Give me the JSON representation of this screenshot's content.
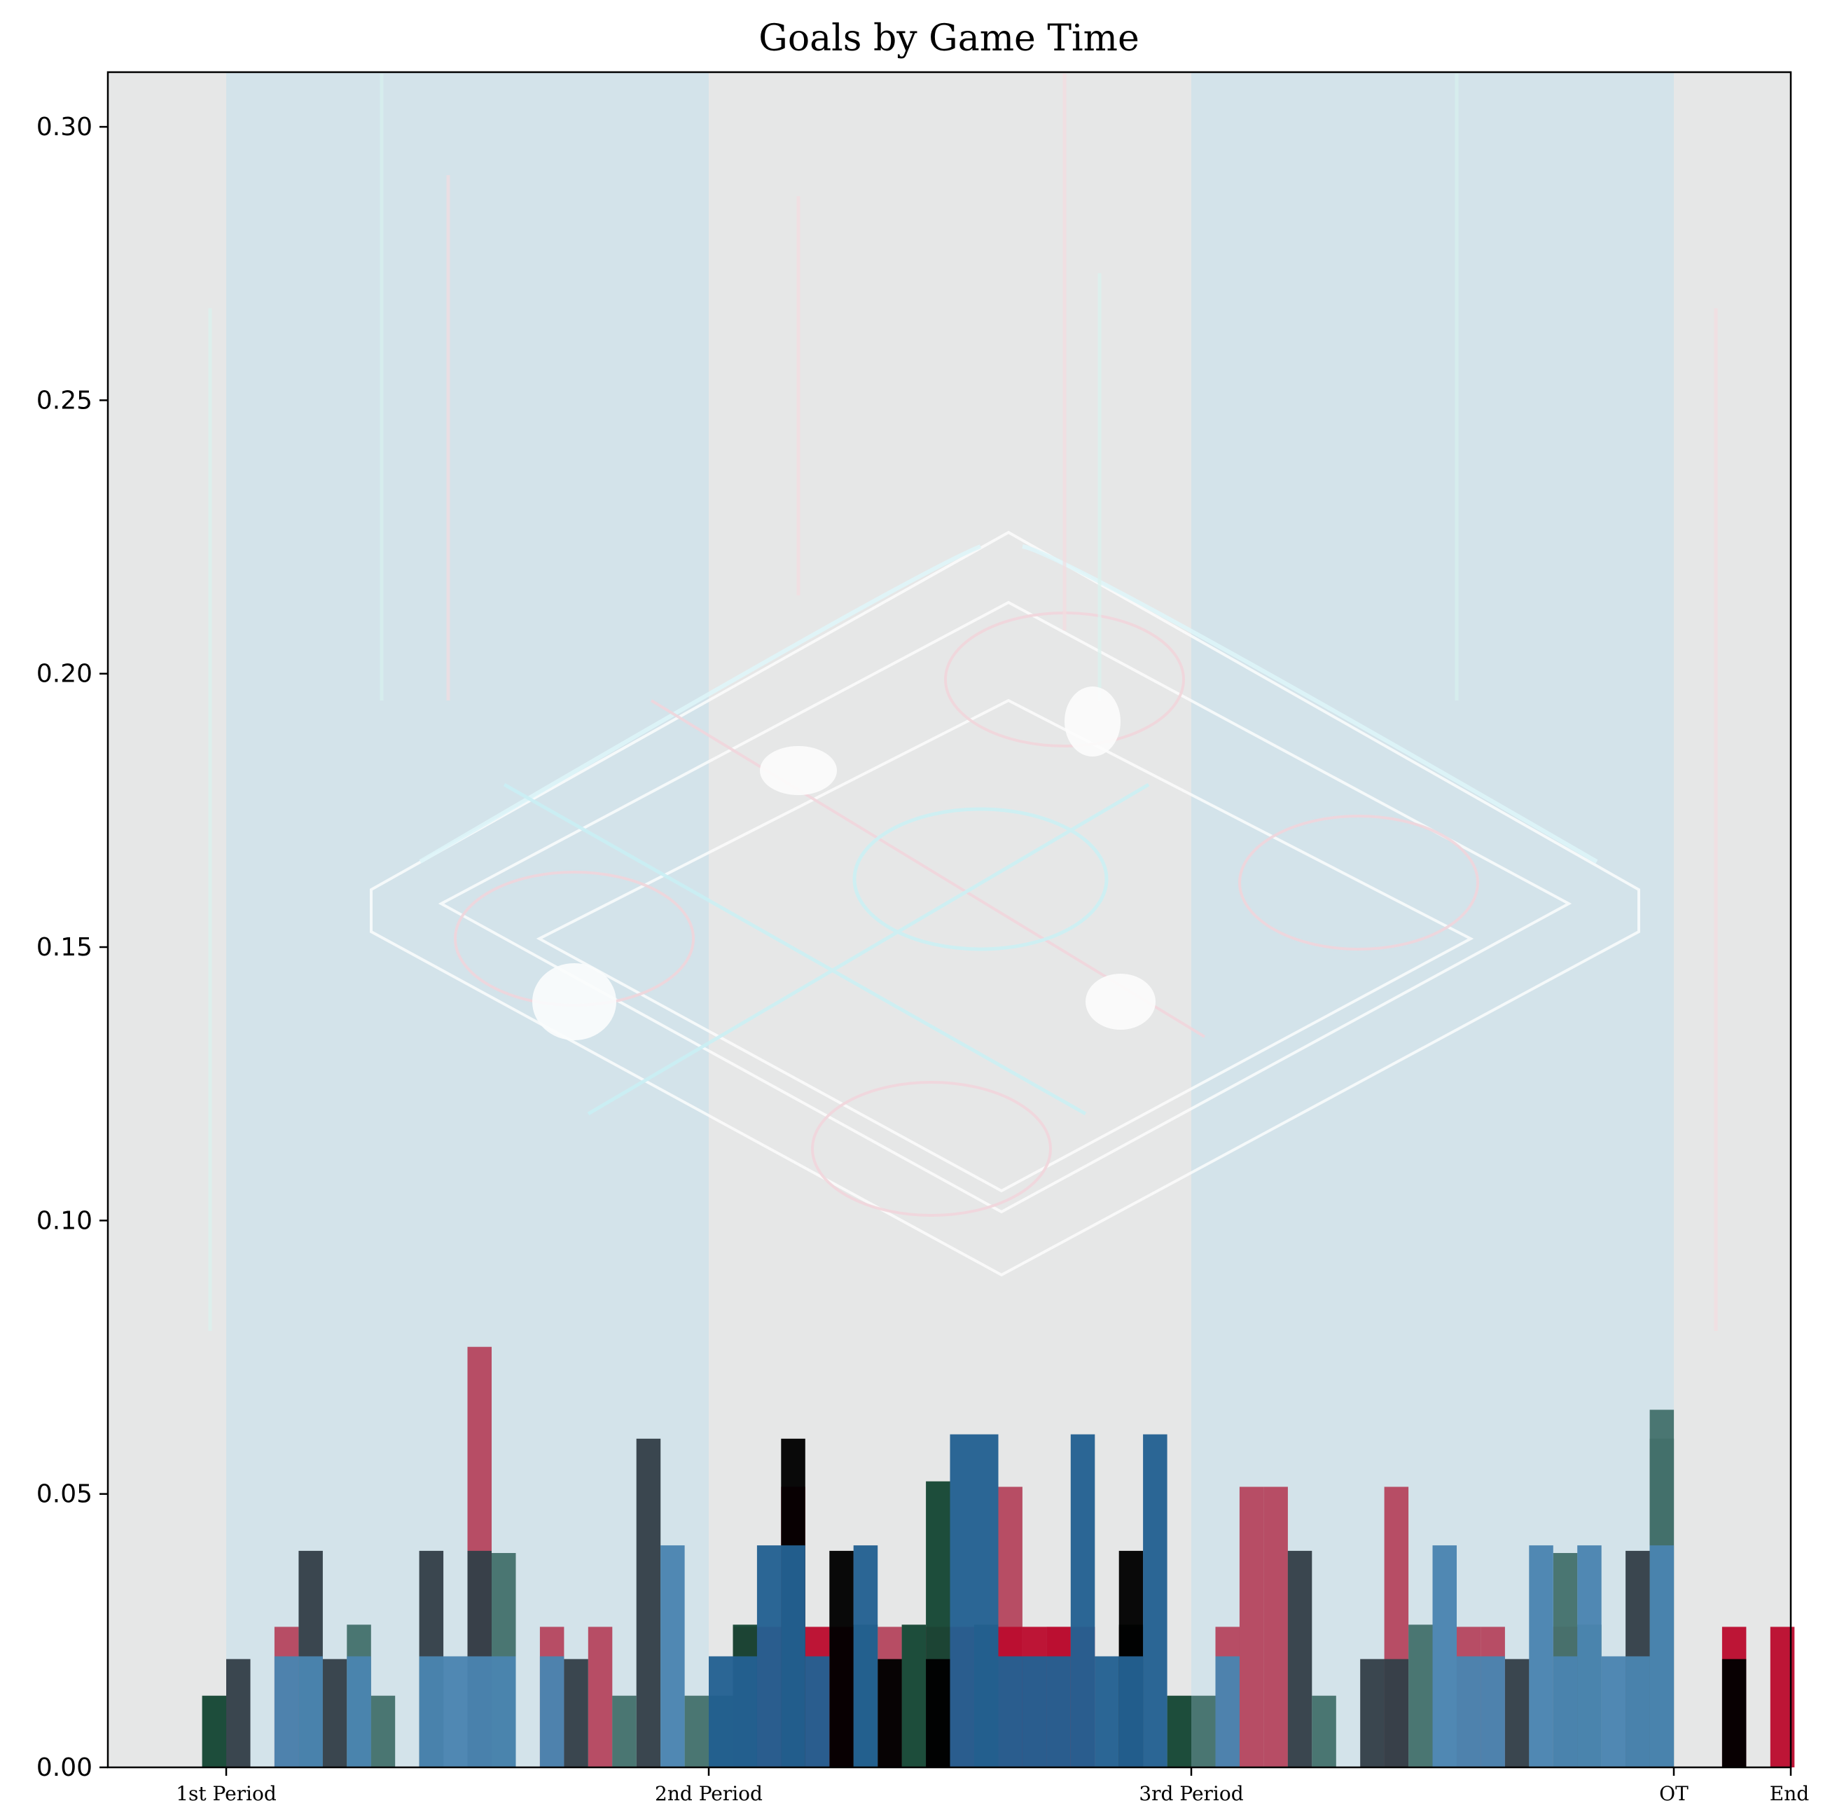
{
  "chart_data": {
    "type": "bar",
    "title": "Goals by Game Time",
    "xlabel": "",
    "ylabel": "",
    "xlim": [
      -5,
      60
    ],
    "ylim": [
      0,
      0.31
    ],
    "bin_width": 1,
    "grid": false,
    "legend": "none",
    "y_ticks": [
      "0.00",
      "0.05",
      "0.10",
      "0.15",
      "0.20",
      "0.25",
      "0.30"
    ],
    "y_tick_values": [
      0,
      0.05,
      0.1,
      0.15,
      0.2,
      0.25,
      0.3
    ],
    "x_ticks": [
      {
        "value": 0,
        "label": "1st Period"
      },
      {
        "value": 20,
        "label": "2nd Period"
      },
      {
        "value": 40,
        "label": "3rd Period"
      },
      {
        "value": 60,
        "label": "OT"
      },
      {
        "value": 65,
        "label": "End"
      }
    ],
    "period_bands": [
      {
        "start": 0,
        "end": 20
      },
      {
        "start": 40,
        "end": 60
      }
    ],
    "colors": {
      "plot_background": "#e6e7e7",
      "band": "#d3e3ea",
      "pink": "#b5475f",
      "red": "#bb0c2f",
      "steel_blue": "#4a84b0",
      "deep_blue": "#236192",
      "dark_slate": "#333f48",
      "black": "#000000",
      "dark_green": "#154734",
      "teal": "#44716c"
    },
    "series": [
      {
        "color": "pink",
        "x": [
          2.5,
          10.5,
          13.5,
          15.5,
          27.5,
          32.5,
          34.5,
          41.5,
          42.5,
          43.5,
          48.5,
          51.5,
          52.5,
          55.5
        ],
        "values": [
          0.0257,
          0.0769,
          0.0257,
          0.0257,
          0.0257,
          0.0513,
          0.0257,
          0.0257,
          0.0513,
          0.0513,
          0.0513,
          0.0257,
          0.0257,
          0.0257
        ]
      },
      {
        "color": "red",
        "x": [
          21.5,
          22.5,
          23.5,
          24.5,
          25.5,
          29.5,
          30.5,
          31.5,
          32.5,
          33.5,
          34.5,
          35.5,
          37.5,
          62.5,
          64.5
        ],
        "values": [
          0.0257,
          0.0257,
          0.0513,
          0.0257,
          0.0257,
          0.0257,
          0.0257,
          0.0257,
          0.0257,
          0.0257,
          0.0257,
          0.0257,
          0.0257,
          0.0257,
          0.0257
        ]
      },
      {
        "color": "dark_green",
        "x": [
          -0.5,
          20.5,
          21.5,
          26.5,
          28.5,
          29.5,
          31.5,
          37.5,
          39.5
        ],
        "values": [
          0.0131,
          0.0131,
          0.0261,
          0.0261,
          0.0261,
          0.0523,
          0.0261,
          0.0261,
          0.0131
        ]
      },
      {
        "color": "dark_slate",
        "x": [
          0.5,
          3.5,
          4.5,
          8.5,
          10.5,
          14.5,
          17.5,
          44.5,
          47.5,
          48.5,
          53.5,
          58.5,
          59.5
        ],
        "values": [
          0.0198,
          0.0396,
          0.0198,
          0.0396,
          0.0396,
          0.0198,
          0.0601,
          0.0396,
          0.0198,
          0.0198,
          0.0198,
          0.0396,
          0.0601
        ]
      },
      {
        "color": "teal",
        "x": [
          5.5,
          6.5,
          11.5,
          16.5,
          19.5,
          40.5,
          45.5,
          49.5,
          55.5,
          56.5,
          59.5
        ],
        "values": [
          0.0261,
          0.0131,
          0.0392,
          0.0131,
          0.0131,
          0.0131,
          0.0131,
          0.0261,
          0.0392,
          0.0261,
          0.0654
        ]
      },
      {
        "color": "black",
        "x": [
          23.5,
          25.5,
          27.5,
          29.5,
          37.5,
          62.5
        ],
        "values": [
          0.0601,
          0.0396,
          0.0198,
          0.0198,
          0.0396,
          0.0198
        ]
      },
      {
        "color": "deep_blue",
        "x": [
          20.5,
          21.5,
          22.5,
          23.5,
          24.5,
          26.5,
          30.5,
          31.5,
          32.5,
          33.5,
          34.5,
          35.5,
          36.5,
          37.5,
          38.5
        ],
        "values": [
          0.0203,
          0.0203,
          0.0406,
          0.0406,
          0.0203,
          0.0406,
          0.0609,
          0.0609,
          0.0203,
          0.0203,
          0.0203,
          0.0609,
          0.0203,
          0.0203,
          0.0609
        ]
      },
      {
        "color": "steel_blue",
        "x": [
          2.5,
          3.5,
          5.5,
          8.5,
          9.5,
          10.5,
          11.5,
          13.5,
          18.5,
          41.5,
          50.5,
          51.5,
          52.5,
          54.5,
          55.5,
          56.5,
          57.5,
          58.5,
          59.5
        ],
        "values": [
          0.0203,
          0.0203,
          0.0203,
          0.0203,
          0.0203,
          0.0203,
          0.0203,
          0.0203,
          0.0406,
          0.0203,
          0.0406,
          0.0203,
          0.0203,
          0.0406,
          0.0203,
          0.0406,
          0.0203,
          0.0203,
          0.0406
        ]
      }
    ]
  }
}
